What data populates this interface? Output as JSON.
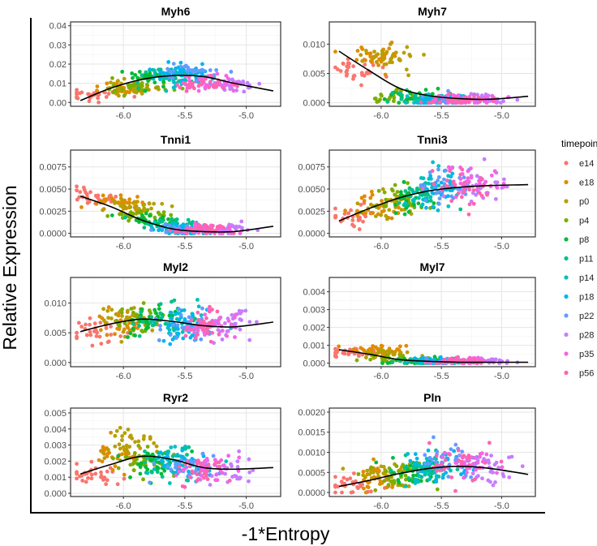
{
  "chart_data": {
    "type": "scatter",
    "xlabel": "-1*Entropy",
    "ylabel": "Relative Expression",
    "xlim": [
      -6.43,
      -4.72
    ],
    "xticks": [
      -6.0,
      -5.5,
      -5.0
    ],
    "xtick_labels": [
      "-6.0",
      "-5.5",
      "-5.0"
    ],
    "legend": {
      "title": "timepoint",
      "placement": "right",
      "entries": [
        "e14",
        "e18",
        "p0",
        "p4",
        "p8",
        "p11",
        "p14",
        "p18",
        "p22",
        "p28",
        "p35",
        "p56"
      ],
      "colors": [
        "#F8766D",
        "#DE8C00",
        "#B79F00",
        "#7CAE00",
        "#00BA38",
        "#00C08B",
        "#00BFC4",
        "#00B4F0",
        "#619CFF",
        "#C77CFF",
        "#F564E3",
        "#FF64B0"
      ]
    },
    "cluster_x_means": [
      -6.25,
      -6.02,
      -5.95,
      -5.85,
      -5.75,
      -5.65,
      -5.55,
      -5.5,
      -5.45,
      -5.15,
      -5.3,
      -5.35
    ],
    "trend_x": [
      -6.35,
      -6.1,
      -5.85,
      -5.6,
      -5.35,
      -5.1,
      -4.78
    ],
    "panels": [
      {
        "title": "Myh6",
        "ylim": [
          -0.002,
          0.042
        ],
        "yticks": [
          0,
          0.01,
          0.02,
          0.03,
          0.04
        ],
        "ytick_labels": [
          "0.00",
          "0.01",
          "0.02",
          "0.03",
          "0.04"
        ],
        "cluster_y_means": [
          0.004,
          0.007,
          0.008,
          0.009,
          0.013,
          0.014,
          0.013,
          0.016,
          0.015,
          0.009,
          0.01,
          0.009
        ],
        "y_sd": 0.0035,
        "trend_y": [
          0.001,
          0.0075,
          0.012,
          0.014,
          0.0135,
          0.01,
          0.006
        ]
      },
      {
        "title": "Myh7",
        "ylim": [
          -0.0006,
          0.0138
        ],
        "yticks": [
          0,
          0.005,
          0.01
        ],
        "ytick_labels": [
          "0.000",
          "0.005",
          "0.010"
        ],
        "cluster_y_means": [
          0.006,
          0.008,
          0.008,
          0.001,
          0.001,
          0.001,
          0.0006,
          0.0005,
          0.0005,
          0.0005,
          0.0005,
          0.0005
        ],
        "y_sd": 0.0012,
        "trend_y": [
          0.0088,
          0.0055,
          0.0025,
          0.0012,
          0.0007,
          0.0006,
          0.0011
        ]
      },
      {
        "title": "Tnni1",
        "ylim": [
          -0.0004,
          0.0094
        ],
        "yticks": [
          0,
          0.0025,
          0.005,
          0.0075
        ],
        "ytick_labels": [
          "0.0000",
          "0.0025",
          "0.0050",
          "0.0075"
        ],
        "cluster_y_means": [
          0.004,
          0.0035,
          0.003,
          0.002,
          0.0015,
          0.001,
          0.0006,
          0.0004,
          0.0004,
          0.0004,
          0.0004,
          0.0004
        ],
        "y_sd": 0.0007,
        "trend_y": [
          0.0042,
          0.003,
          0.0015,
          0.0005,
          0.0002,
          0.0002,
          0.0008
        ]
      },
      {
        "title": "Tnni3",
        "ylim": [
          -0.0004,
          0.0094
        ],
        "yticks": [
          0,
          0.0025,
          0.005,
          0.0075
        ],
        "ytick_labels": [
          "0.0000",
          "0.0025",
          "0.0050",
          "0.0075"
        ],
        "cluster_y_means": [
          0.002,
          0.003,
          0.0035,
          0.004,
          0.004,
          0.0045,
          0.005,
          0.005,
          0.0055,
          0.0055,
          0.006,
          0.005
        ],
        "y_sd": 0.0011,
        "trend_y": [
          0.0014,
          0.0028,
          0.004,
          0.0048,
          0.0052,
          0.0054,
          0.0055
        ]
      },
      {
        "title": "Myl2",
        "ylim": [
          -0.0007,
          0.0143
        ],
        "yticks": [
          0,
          0.005,
          0.01
        ],
        "ytick_labels": [
          "0.000",
          "0.005",
          "0.010"
        ],
        "cluster_y_means": [
          0.0055,
          0.0068,
          0.007,
          0.007,
          0.0072,
          0.0068,
          0.0065,
          0.0062,
          0.006,
          0.0062,
          0.0063,
          0.006
        ],
        "y_sd": 0.0016,
        "trend_y": [
          0.0052,
          0.0065,
          0.0073,
          0.0069,
          0.0062,
          0.006,
          0.0068
        ]
      },
      {
        "title": "Myl7",
        "ylim": [
          -0.0002,
          0.0048
        ],
        "yticks": [
          0,
          0.001,
          0.002,
          0.003,
          0.004
        ],
        "ytick_labels": [
          "0.000",
          "0.001",
          "0.002",
          "0.003",
          "0.004"
        ],
        "cluster_y_means": [
          0.0006,
          0.0008,
          0.0005,
          0.0002,
          0.0001,
          0.0001,
          0.0001,
          0.0001,
          0.0001,
          0.0001,
          0.0001,
          0.0001
        ],
        "y_sd": 0.00025,
        "trend_y": [
          0.00075,
          0.0005,
          0.0002,
          0.0001,
          5e-05,
          5e-05,
          5e-05
        ]
      },
      {
        "title": "Ryr2",
        "ylim": [
          -0.0002,
          0.0053
        ],
        "yticks": [
          0,
          0.001,
          0.002,
          0.003,
          0.004,
          0.005
        ],
        "ytick_labels": [
          "0.000",
          "0.001",
          "0.002",
          "0.003",
          "0.004",
          "0.005"
        ],
        "cluster_y_means": [
          0.0012,
          0.0025,
          0.003,
          0.002,
          0.002,
          0.002,
          0.0018,
          0.0017,
          0.0017,
          0.0014,
          0.0015,
          0.0014
        ],
        "y_sd": 0.0007,
        "trend_y": [
          0.0012,
          0.0018,
          0.0023,
          0.0021,
          0.0016,
          0.0015,
          0.0016
        ]
      },
      {
        "title": "Pln",
        "ylim": [
          -0.0001,
          0.0021
        ],
        "yticks": [
          0,
          0.0005,
          0.001,
          0.0015,
          0.002
        ],
        "ytick_labels": [
          "0.0000",
          "0.0005",
          "0.0010",
          "0.0015",
          "0.0020"
        ],
        "cluster_y_means": [
          0.0002,
          0.0004,
          0.0004,
          0.0004,
          0.0005,
          0.0006,
          0.0006,
          0.0007,
          0.0008,
          0.0006,
          0.0007,
          0.0007
        ],
        "y_sd": 0.0003,
        "trend_y": [
          0.00015,
          0.0003,
          0.00047,
          0.0006,
          0.00065,
          0.0006,
          0.00045
        ]
      }
    ]
  }
}
